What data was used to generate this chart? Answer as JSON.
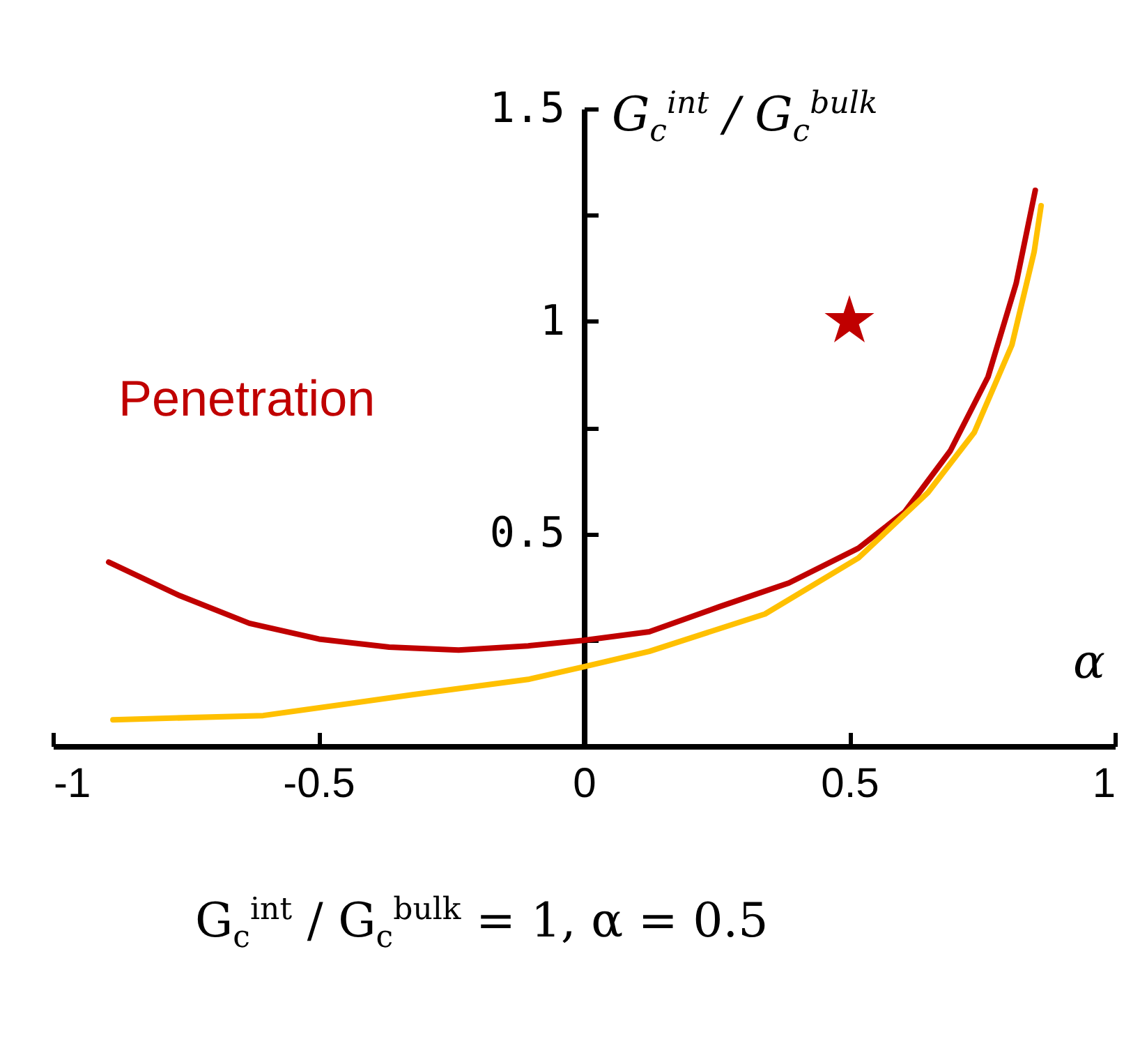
{
  "chart_data": {
    "type": "line",
    "xlabel": "α",
    "ylabel": "G$_{c}$$^{int}$ / G$_{c}$$^{bulk}$",
    "annotations": [
      "G$_{c}$$^{int}$ / G$_{c}$$^{bulk}$ = 1, α = 0.5"
    ],
    "xlim": [
      -1,
      1
    ],
    "xticks": [
      -1,
      -0.5,
      0,
      0.5,
      1
    ],
    "ylim": [
      0,
      1.5
    ],
    "yticks": [
      {
        "value": 0.25,
        "label": null
      },
      0.5,
      {
        "value": 0.75,
        "label": null
      },
      1,
      {
        "value": 1.25,
        "label": null
      },
      1.5
    ],
    "grid": false,
    "legend": false,
    "marker": "none",
    "line_style": "solid",
    "series": [
      {
        "name": "Penetration",
        "color": "#c00000",
        "x": [
          -0.895,
          -0.761,
          -0.63,
          -0.499,
          -0.367,
          -0.236,
          -0.105,
          0,
          0.123,
          0.255,
          0.386,
          0.517,
          0.604,
          0.69,
          0.761,
          0.814,
          0.85
        ],
        "values": [
          0.433,
          0.354,
          0.289,
          0.252,
          0.233,
          0.226,
          0.236,
          0.249,
          0.269,
          0.328,
          0.384,
          0.466,
          0.551,
          0.695,
          0.869,
          1.089,
          1.308
        ]
      },
      {
        "color": "#ffc000",
        "x": [
          -0.887,
          -0.604,
          -0.323,
          -0.105,
          0,
          0.123,
          0.341,
          0.517,
          0.648,
          0.735,
          0.806,
          0.848,
          0.861
        ],
        "values": [
          0.062,
          0.072,
          0.121,
          0.157,
          0.187,
          0.223,
          0.311,
          0.443,
          0.597,
          0.738,
          0.944,
          1.164,
          1.272
        ]
      },
      {
        "type": "scatter",
        "marker": "star",
        "color": "#c00000",
        "x": [
          0.5
        ],
        "values": [
          1
        ]
      }
    ]
  }
}
